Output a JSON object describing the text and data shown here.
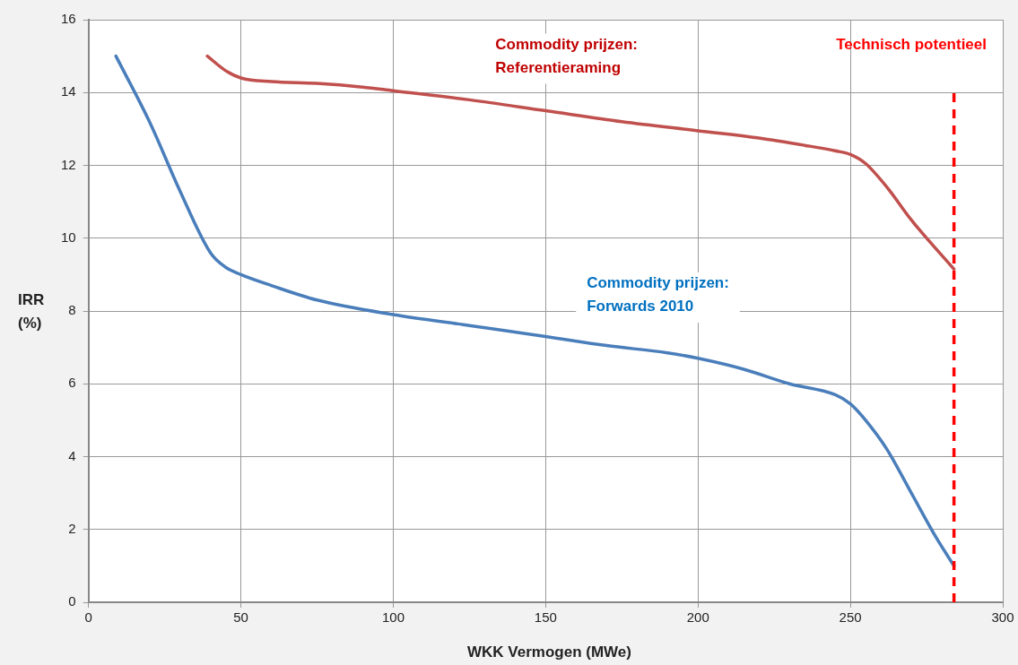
{
  "chart_data": {
    "type": "line",
    "xlabel": "WKK Vermogen (MWe)",
    "ylabel": "IRR (%)",
    "xlim": [
      0,
      300
    ],
    "xticks": [
      0,
      50,
      100,
      150,
      200,
      250,
      300
    ],
    "ylim": [
      0,
      16
    ],
    "yticks": [
      0,
      2,
      4,
      6,
      8,
      10,
      12,
      14,
      16
    ],
    "grid": true,
    "legend": false,
    "marker": "none",
    "line_style": "solid",
    "series": [
      {
        "name": "Commodity prijzen: Referentieraming",
        "color": "#c0504d",
        "x": [
          39,
          45,
          50,
          60,
          75,
          90,
          100,
          125,
          150,
          175,
          200,
          220,
          235,
          245,
          250,
          255,
          262,
          270,
          284
        ],
        "values": [
          15,
          14.6,
          14.4,
          14.3,
          14.25,
          14.15,
          14.05,
          13.8,
          13.5,
          13.2,
          12.95,
          12.75,
          12.55,
          12.4,
          12.3,
          12.05,
          11.4,
          10.5,
          9.15
        ]
      },
      {
        "name": "Commodity prijzen: Forwards 2010",
        "color": "#4a7ebb",
        "x": [
          9,
          20,
          30,
          40,
          45,
          50,
          60,
          75,
          100,
          125,
          150,
          170,
          190,
          200,
          215,
          230,
          245,
          250,
          255,
          262,
          270,
          278,
          284
        ],
        "values": [
          15,
          13.2,
          11.3,
          9.6,
          9.2,
          9.0,
          8.7,
          8.3,
          7.9,
          7.6,
          7.3,
          7.05,
          6.85,
          6.7,
          6.4,
          6.0,
          5.7,
          5.45,
          5.0,
          4.2,
          3.0,
          1.8,
          1.0
        ]
      }
    ],
    "ref_lines": [
      {
        "axis": "x",
        "value": 284,
        "label": "Technisch potentieel",
        "color": "#ff0000",
        "line_style": "dashed"
      }
    ]
  }
}
